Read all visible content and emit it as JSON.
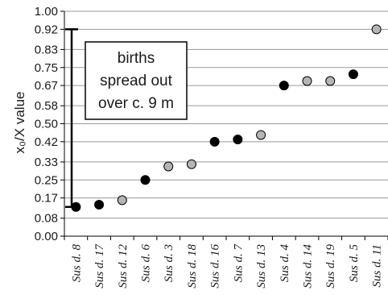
{
  "chart_data": {
    "type": "scatter",
    "categories": [
      "Sus d. 8",
      "Sus d. 17",
      "Sus d. 12",
      "Sus d. 6",
      "Sus d. 3",
      "Sus d. 18",
      "Sus d. 16",
      "Sus d. 7",
      "Sus d. 13",
      "Sus d. 4",
      "Sus d. 14",
      "Sus d. 19",
      "Sus d. 5",
      "Sus d. 11"
    ],
    "values": [
      0.13,
      0.14,
      0.16,
      0.25,
      0.31,
      0.32,
      0.42,
      0.43,
      0.45,
      0.67,
      0.69,
      0.69,
      0.72,
      0.92
    ],
    "point_fill": [
      "black",
      "black",
      "grey",
      "black",
      "grey",
      "grey",
      "black",
      "black",
      "grey",
      "black",
      "grey",
      "grey",
      "black",
      "grey"
    ],
    "colors": {
      "black": "#000000",
      "grey": "#b5b5b5"
    },
    "yticks": [
      "0.00",
      "0.08",
      "0.17",
      "0.25",
      "0.33",
      "0.42",
      "0.50",
      "0.58",
      "0.67",
      "0.75",
      "0.83",
      "0.92",
      "1.00"
    ],
    "ylim": [
      0,
      1
    ],
    "ylabel": "x₀/X value",
    "xlabel": "",
    "grid": "horizontal",
    "bracket": {
      "low": 0.13,
      "high": 0.92
    },
    "annotation": [
      "births",
      "spread out",
      "over c. 9 m"
    ]
  }
}
